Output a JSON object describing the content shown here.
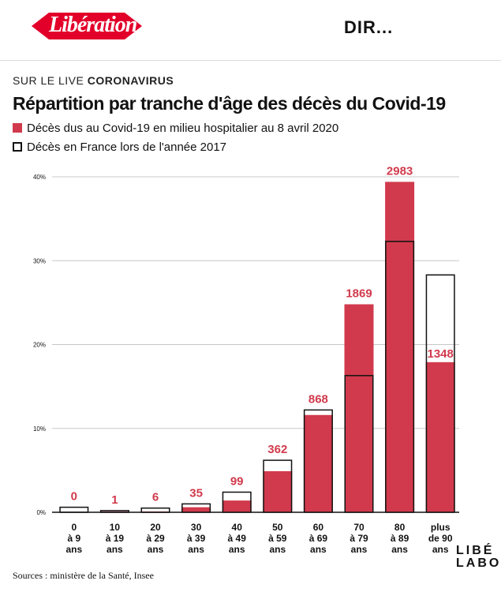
{
  "header": {
    "logo": "Libération",
    "right_text": "DIR..."
  },
  "live": {
    "prefix": "SUR LE LIVE",
    "topic": "CORONAVIRUS"
  },
  "colors": {
    "accent": "#d13a4c",
    "ink": "#111111",
    "grid": "#c8c8c8"
  },
  "chart_data": {
    "type": "bar",
    "title": "Répartition par tranche d'âge des décès du Covid-19",
    "legend": [
      {
        "name": "Décès dus au Covid-19 en milieu hospitalier au 8 avril 2020",
        "style": "filled-red"
      },
      {
        "name": "Décès en France lors de l'année 2017",
        "style": "outlined"
      }
    ],
    "categories": [
      [
        "0",
        "à 9",
        "ans"
      ],
      [
        "10",
        "à 19",
        "ans"
      ],
      [
        "20",
        "à 29",
        "ans"
      ],
      [
        "30",
        "à 39",
        "ans"
      ],
      [
        "40",
        "à 49",
        "ans"
      ],
      [
        "50",
        "à 59",
        "ans"
      ],
      [
        "60",
        "à 69",
        "ans"
      ],
      [
        "70",
        "à 79",
        "ans"
      ],
      [
        "80",
        "à 89",
        "ans"
      ],
      [
        "plus",
        "de 90",
        "ans"
      ]
    ],
    "series": [
      {
        "name": "Décès Covid-19 (%)",
        "values": [
          0,
          0.1,
          0.1,
          0.6,
          1.4,
          4.9,
          11.6,
          24.8,
          39.4,
          17.9
        ]
      },
      {
        "name": "Décès 2017 (%)",
        "values": [
          0.6,
          0.2,
          0.5,
          1.0,
          2.4,
          6.2,
          12.2,
          16.3,
          32.3,
          28.3
        ]
      }
    ],
    "labels": [
      "0",
      "1",
      "6",
      "35",
      "99",
      "362",
      "868",
      "1869",
      "2983",
      "1348"
    ],
    "yticks": [
      "0%",
      "10%",
      "20%",
      "30%",
      "40%"
    ],
    "ylim": [
      0,
      40
    ],
    "source": "Sources : ministère de la Santé, Insee"
  },
  "brand": {
    "line1": "LIBÉ",
    "line2": "LABO"
  }
}
